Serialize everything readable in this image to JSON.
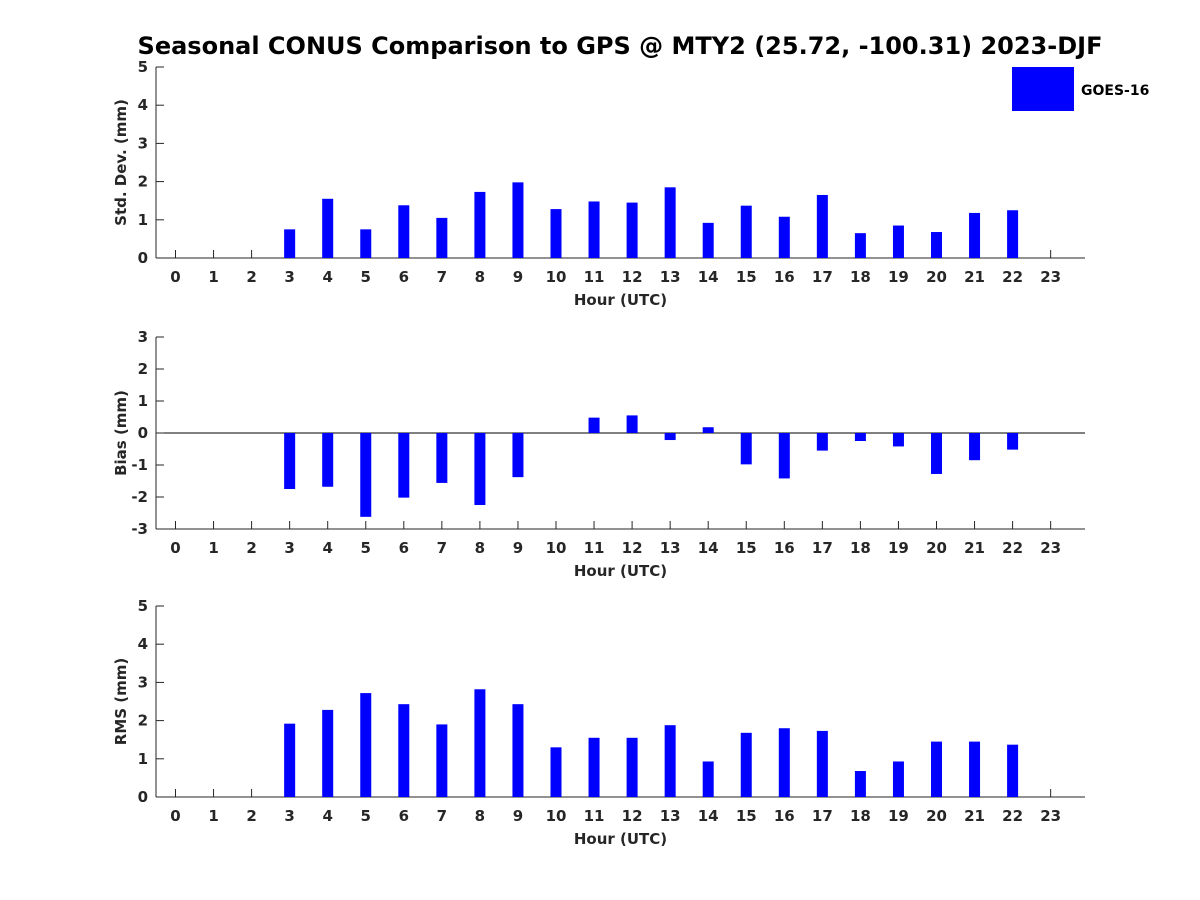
{
  "chart_data": {
    "title": "Seasonal CONUS Comparison to GPS @ MTY2 (25.72, -100.31) 2023-DJF",
    "type": "bar",
    "legend": {
      "entries": [
        "GOES-16"
      ],
      "placement": "top-right"
    },
    "series_color": "#0000ff",
    "panels": [
      {
        "name": "std",
        "type": "bar",
        "xlabel": "Hour (UTC)",
        "ylabel": "Std. Dev. (mm)",
        "ylim": [
          0,
          5
        ],
        "yticks": [
          "0",
          "1",
          "2",
          "3",
          "4",
          "5"
        ],
        "categories": [
          "0",
          "1",
          "2",
          "3",
          "4",
          "5",
          "6",
          "7",
          "8",
          "9",
          "10",
          "11",
          "12",
          "13",
          "14",
          "15",
          "16",
          "17",
          "18",
          "19",
          "20",
          "21",
          "22",
          "23"
        ],
        "series": [
          {
            "name": "GOES-16",
            "values": [
              null,
              null,
              null,
              0.75,
              1.55,
              0.75,
              1.38,
              1.05,
              1.73,
              1.98,
              1.28,
              1.48,
              1.45,
              1.85,
              0.92,
              1.37,
              1.08,
              1.65,
              0.65,
              0.85,
              0.68,
              1.18,
              1.25,
              null
            ]
          }
        ]
      },
      {
        "name": "bias",
        "type": "bar",
        "xlabel": "Hour (UTC)",
        "ylabel": "Bias (mm)",
        "ylim": [
          -3,
          3
        ],
        "yticks": [
          "-3",
          "-2",
          "-1",
          "0",
          "1",
          "2",
          "3"
        ],
        "categories": [
          "0",
          "1",
          "2",
          "3",
          "4",
          "5",
          "6",
          "7",
          "8",
          "9",
          "10",
          "11",
          "12",
          "13",
          "14",
          "15",
          "16",
          "17",
          "18",
          "19",
          "20",
          "21",
          "22",
          "23"
        ],
        "series": [
          {
            "name": "GOES-16",
            "values": [
              null,
              null,
              null,
              -1.75,
              -1.68,
              -2.62,
              -2.02,
              -1.56,
              -2.25,
              -1.38,
              0.0,
              0.48,
              0.55,
              -0.22,
              0.18,
              -0.98,
              -1.42,
              -0.55,
              -0.25,
              -0.42,
              -1.28,
              -0.85,
              -0.52,
              null
            ]
          }
        ]
      },
      {
        "name": "rms",
        "type": "bar",
        "xlabel": "Hour (UTC)",
        "ylabel": "RMS (mm)",
        "ylim": [
          0,
          5
        ],
        "yticks": [
          "0",
          "1",
          "2",
          "3",
          "4",
          "5"
        ],
        "categories": [
          "0",
          "1",
          "2",
          "3",
          "4",
          "5",
          "6",
          "7",
          "8",
          "9",
          "10",
          "11",
          "12",
          "13",
          "14",
          "15",
          "16",
          "17",
          "18",
          "19",
          "20",
          "21",
          "22",
          "23"
        ],
        "series": [
          {
            "name": "GOES-16",
            "values": [
              null,
              null,
              null,
              1.92,
              2.28,
              2.72,
              2.43,
              1.9,
              2.82,
              2.43,
              1.3,
              1.55,
              1.55,
              1.88,
              0.93,
              1.68,
              1.8,
              1.73,
              0.68,
              0.93,
              1.45,
              1.45,
              1.37,
              null
            ]
          }
        ]
      }
    ]
  }
}
